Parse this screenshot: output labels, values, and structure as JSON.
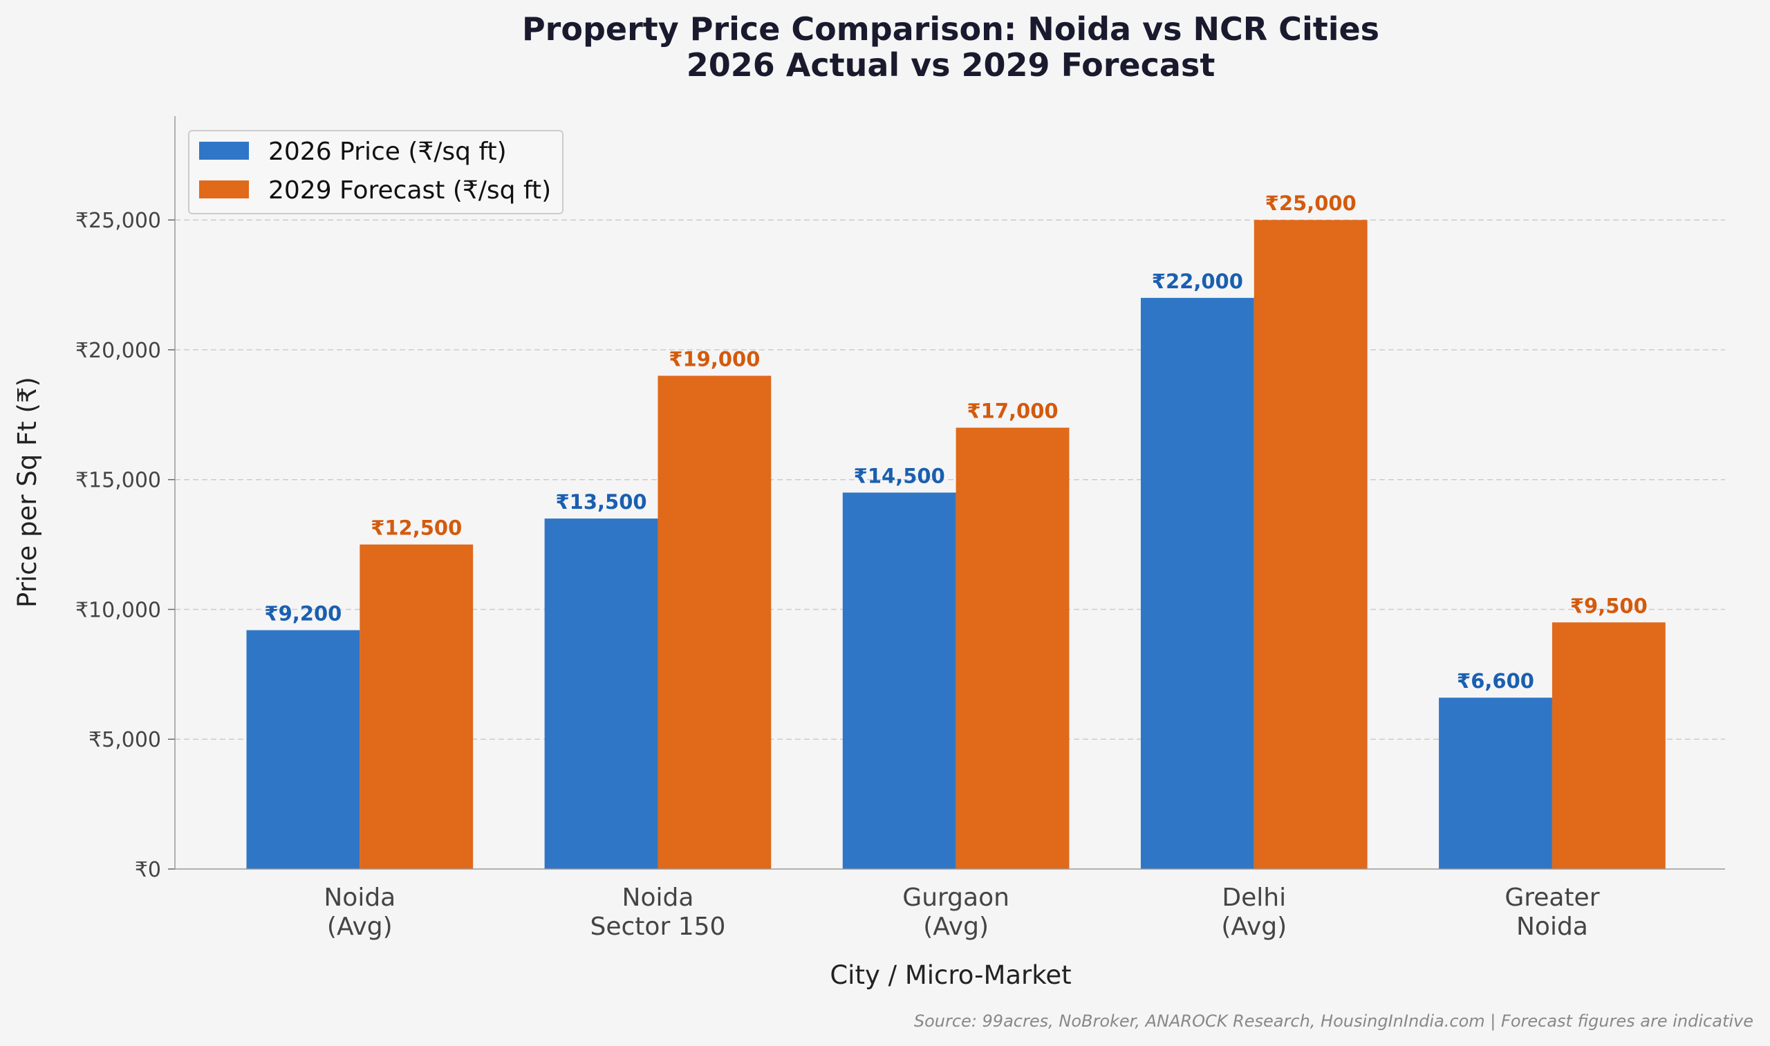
{
  "chart_data": {
    "type": "bar",
    "title": "Property Price Comparison: Noida vs NCR Cities",
    "subtitle": "2026 Actual vs 2029 Forecast",
    "xlabel": "City / Micro-Market",
    "ylabel": "Price per Sq Ft (₹)",
    "categories": [
      [
        "Noida",
        "(Avg)"
      ],
      [
        "Noida",
        "Sector 150"
      ],
      [
        "Gurgaon",
        "(Avg)"
      ],
      [
        "Delhi",
        "(Avg)"
      ],
      [
        "Greater",
        "Noida"
      ]
    ],
    "series": [
      {
        "name": "2026 Price (₹/sq ft)",
        "color": "#2f77c6",
        "label_color": "#1a5fb0",
        "values": [
          9200,
          13500,
          14500,
          22000,
          6600
        ],
        "labels": [
          "₹9,200",
          "₹13,500",
          "₹14,500",
          "₹22,000",
          "₹6,600"
        ]
      },
      {
        "name": "2029 Forecast (₹/sq ft)",
        "color": "#e0691a",
        "label_color": "#d45a0c",
        "values": [
          12500,
          19000,
          17000,
          25000,
          9500
        ],
        "labels": [
          "₹12,500",
          "₹19,000",
          "₹17,000",
          "₹25,000",
          "₹9,500"
        ]
      }
    ],
    "ylim": [
      0,
      29000
    ],
    "yticks": [
      0,
      5000,
      10000,
      15000,
      20000,
      25000
    ],
    "ytick_labels": [
      "₹0",
      "₹5,000",
      "₹10,000",
      "₹15,000",
      "₹20,000",
      "₹25,000"
    ],
    "grid": "y dashed",
    "legend": "top-left",
    "source_note": "Source: 99acres, NoBroker, ANAROCK Research, HousingInIndia.com | Forecast figures are indicative"
  }
}
